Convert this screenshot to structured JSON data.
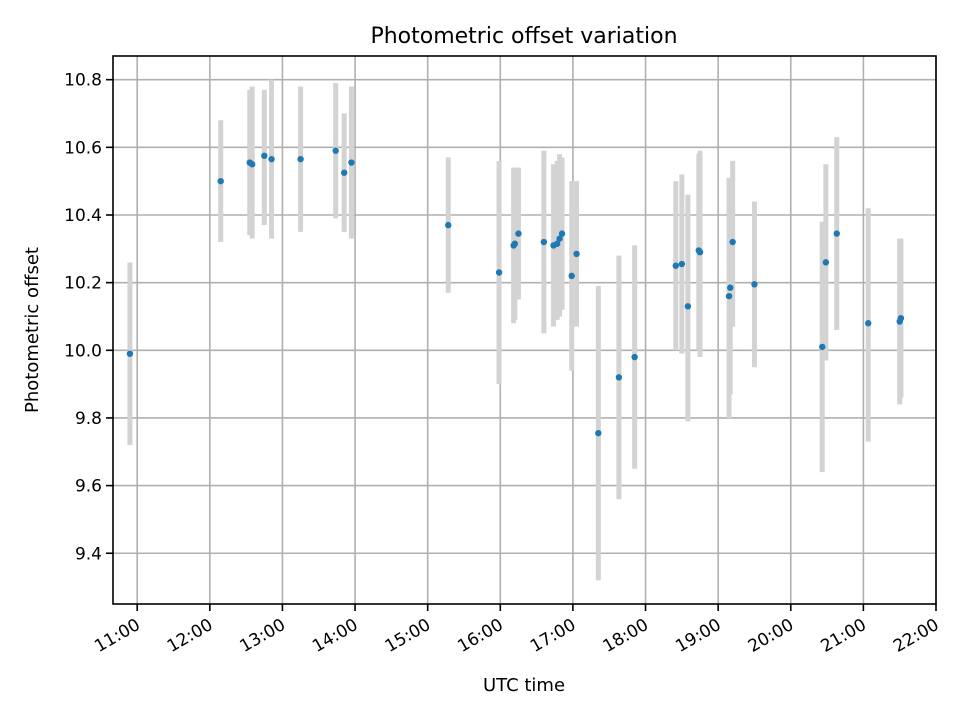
{
  "chart_data": {
    "type": "scatter",
    "title": "Photometric offset variation",
    "xlabel": "UTC time",
    "ylabel": "Photometric offset",
    "xlim": [
      "10:40",
      "22:00"
    ],
    "ylim": [
      9.25,
      10.87
    ],
    "x_ticks": [
      "11:00",
      "12:00",
      "13:00",
      "14:00",
      "15:00",
      "16:00",
      "17:00",
      "18:00",
      "19:00",
      "20:00",
      "21:00",
      "22:00"
    ],
    "y_ticks": [
      9.4,
      9.6,
      9.8,
      10.0,
      10.2,
      10.4,
      10.6,
      10.8
    ],
    "grid": true,
    "colors": {
      "point": "#1f77b4",
      "errorbar": "#d3d3d3"
    },
    "points": [
      {
        "t": "10:54",
        "y": 9.99,
        "lo": 9.72,
        "hi": 10.26
      },
      {
        "t": "12:09",
        "y": 10.5,
        "lo": 10.32,
        "hi": 10.68
      },
      {
        "t": "12:33",
        "y": 10.555,
        "lo": 10.34,
        "hi": 10.77
      },
      {
        "t": "12:35",
        "y": 10.55,
        "lo": 10.33,
        "hi": 10.78
      },
      {
        "t": "12:45",
        "y": 10.575,
        "lo": 10.37,
        "hi": 10.77
      },
      {
        "t": "12:51",
        "y": 10.565,
        "lo": 10.33,
        "hi": 10.8
      },
      {
        "t": "13:15",
        "y": 10.565,
        "lo": 10.35,
        "hi": 10.78
      },
      {
        "t": "13:44",
        "y": 10.59,
        "lo": 10.39,
        "hi": 10.79
      },
      {
        "t": "13:51",
        "y": 10.525,
        "lo": 10.35,
        "hi": 10.7
      },
      {
        "t": "13:57",
        "y": 10.555,
        "lo": 10.33,
        "hi": 10.78
      },
      {
        "t": "15:17",
        "y": 10.37,
        "lo": 10.17,
        "hi": 10.57
      },
      {
        "t": "15:59",
        "y": 10.23,
        "lo": 9.9,
        "hi": 10.56
      },
      {
        "t": "16:11",
        "y": 10.31,
        "lo": 10.08,
        "hi": 10.54
      },
      {
        "t": "16:12",
        "y": 10.315,
        "lo": 10.09,
        "hi": 10.54
      },
      {
        "t": "16:15",
        "y": 10.345,
        "lo": 10.15,
        "hi": 10.54
      },
      {
        "t": "16:36",
        "y": 10.32,
        "lo": 10.05,
        "hi": 10.59
      },
      {
        "t": "16:44",
        "y": 10.31,
        "lo": 10.07,
        "hi": 10.55
      },
      {
        "t": "16:47",
        "y": 10.315,
        "lo": 10.09,
        "hi": 10.56
      },
      {
        "t": "16:49",
        "y": 10.33,
        "lo": 10.1,
        "hi": 10.58
      },
      {
        "t": "16:51",
        "y": 10.345,
        "lo": 10.12,
        "hi": 10.57
      },
      {
        "t": "16:59",
        "y": 10.22,
        "lo": 9.94,
        "hi": 10.5
      },
      {
        "t": "17:03",
        "y": 10.285,
        "lo": 10.07,
        "hi": 10.5
      },
      {
        "t": "17:21",
        "y": 9.755,
        "lo": 9.32,
        "hi": 10.19
      },
      {
        "t": "17:38",
        "y": 9.92,
        "lo": 9.56,
        "hi": 10.28
      },
      {
        "t": "17:51",
        "y": 9.98,
        "lo": 9.65,
        "hi": 10.31
      },
      {
        "t": "18:25",
        "y": 10.25,
        "lo": 10.0,
        "hi": 10.5
      },
      {
        "t": "18:30",
        "y": 10.255,
        "lo": 9.99,
        "hi": 10.52
      },
      {
        "t": "18:35",
        "y": 10.13,
        "lo": 9.79,
        "hi": 10.46
      },
      {
        "t": "18:44",
        "y": 10.295,
        "lo": 10.0,
        "hi": 10.58
      },
      {
        "t": "18:45",
        "y": 10.29,
        "lo": 9.98,
        "hi": 10.59
      },
      {
        "t": "19:09",
        "y": 10.16,
        "lo": 9.8,
        "hi": 10.51
      },
      {
        "t": "19:10",
        "y": 10.185,
        "lo": 9.87,
        "hi": 10.5
      },
      {
        "t": "19:12",
        "y": 10.32,
        "lo": 10.07,
        "hi": 10.56
      },
      {
        "t": "19:30",
        "y": 10.195,
        "lo": 9.95,
        "hi": 10.44
      },
      {
        "t": "20:26",
        "y": 10.01,
        "lo": 9.64,
        "hi": 10.38
      },
      {
        "t": "20:29",
        "y": 10.26,
        "lo": 9.97,
        "hi": 10.55
      },
      {
        "t": "20:38",
        "y": 10.345,
        "lo": 10.06,
        "hi": 10.63
      },
      {
        "t": "21:04",
        "y": 10.08,
        "lo": 9.73,
        "hi": 10.42
      },
      {
        "t": "21:30",
        "y": 10.085,
        "lo": 9.84,
        "hi": 10.33
      },
      {
        "t": "21:31",
        "y": 10.095,
        "lo": 9.86,
        "hi": 10.33
      }
    ]
  }
}
